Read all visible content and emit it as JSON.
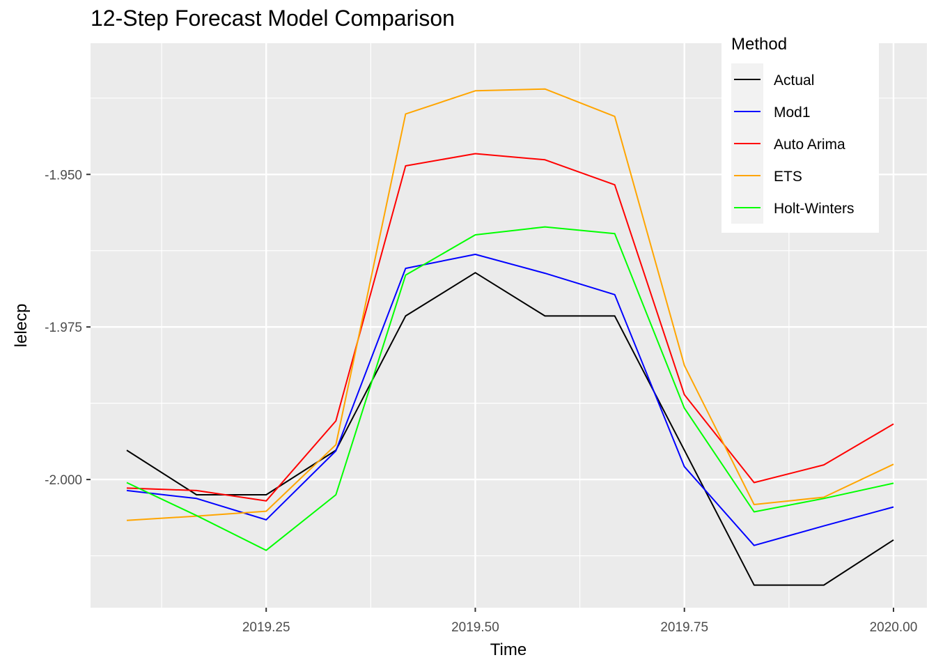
{
  "chart_data": {
    "type": "line",
    "title": "12-Step Forecast Model Comparison",
    "xlabel": "Time",
    "ylabel": "lelecp",
    "xlim": [
      2019.04,
      2020.04
    ],
    "ylim": [
      -2.021,
      -1.9285
    ],
    "xticks": [
      2019.25,
      2019.5,
      2019.75,
      2020.0
    ],
    "xtick_labels": [
      "2019.25",
      "2019.50",
      "2019.75",
      "2020.00"
    ],
    "yticks": [
      -1.95,
      -1.975,
      -2.0
    ],
    "ytick_labels": [
      "-1.950",
      "-1.975",
      "-2.000"
    ],
    "x": [
      2019.0833,
      2019.1667,
      2019.25,
      2019.3333,
      2019.4167,
      2019.5,
      2019.5833,
      2019.6667,
      2019.75,
      2019.8333,
      2019.9167,
      2020.0
    ],
    "series": [
      {
        "name": "Actual",
        "color": "#000000",
        "values": [
          -1.9952,
          -2.0025,
          -2.0025,
          -1.9952,
          -1.9732,
          -1.9661,
          -1.9732,
          -1.9732,
          -1.9952,
          -2.0173,
          -2.0173,
          -2.0099
        ]
      },
      {
        "name": "Mod1",
        "color": "#0000FF",
        "values": [
          -2.0018,
          -2.0031,
          -2.0066,
          -1.9953,
          -1.9654,
          -1.9631,
          -1.9662,
          -1.9697,
          -1.9979,
          -2.0108,
          -2.0076,
          -2.0045
        ]
      },
      {
        "name": "Auto Arima",
        "color": "#FF0000",
        "values": [
          -2.0014,
          -2.0018,
          -2.0035,
          -1.9904,
          -1.9486,
          -1.9466,
          -1.9476,
          -1.9517,
          -1.9861,
          -2.0005,
          -1.9976,
          -1.9909
        ]
      },
      {
        "name": "ETS",
        "color": "#FFA500",
        "values": [
          -2.0067,
          -2.006,
          -2.0052,
          -1.9943,
          -1.9401,
          -1.9363,
          -1.936,
          -1.9405,
          -1.9813,
          -2.0041,
          -2.0029,
          -1.9975
        ]
      },
      {
        "name": "Holt-Winters",
        "color": "#00FF00",
        "values": [
          -2.0005,
          -2.0059,
          -2.0116,
          -2.0025,
          -1.9665,
          -1.9599,
          -1.9586,
          -1.9597,
          -1.9883,
          -2.0053,
          -2.0031,
          -2.0006
        ]
      }
    ],
    "grid": true,
    "legend": {
      "title": "Method",
      "position": "top-right"
    }
  }
}
